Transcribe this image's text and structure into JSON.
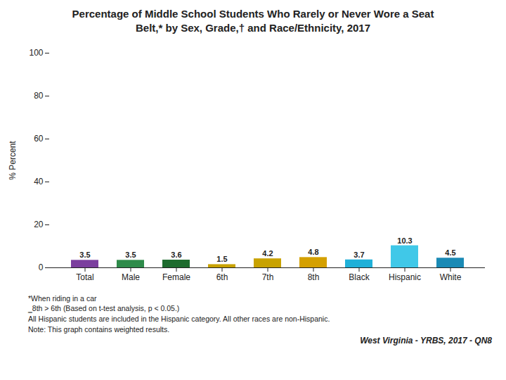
{
  "chart_data": {
    "type": "bar",
    "title": "Percentage of Middle School Students Who Rarely or Never Wore a Seat\nBelt,* by Sex, Grade,† and Race/Ethnicity, 2017",
    "categories": [
      "Total",
      "Male",
      "Female",
      "6th",
      "7th",
      "8th",
      "Black",
      "Hispanic",
      "White"
    ],
    "values": [
      3.5,
      3.5,
      3.6,
      1.5,
      4.2,
      4.8,
      3.7,
      10.3,
      4.5
    ],
    "colors": [
      "#7b3f9e",
      "#2e8b4a",
      "#1e6b2e",
      "#c8a200",
      "#c8a200",
      "#d4a000",
      "#20b0d8",
      "#40c8e8",
      "#1a8ab5"
    ],
    "ylabel": "% Percent",
    "ylim": [
      0,
      100
    ],
    "yticks": [
      0,
      20,
      40,
      60,
      80,
      100
    ],
    "data_labels": true,
    "grid": false,
    "annotations": [
      "*When riding in a car",
      "‗8th > 6th (Based on t-test analysis, p < 0.05.)",
      "All Hispanic students are included in the Hispanic category.  All other races are non-Hispanic.",
      "Note: This graph contains weighted results."
    ],
    "watermark": "West Virginia - YRBS, 2017 - QN8"
  }
}
